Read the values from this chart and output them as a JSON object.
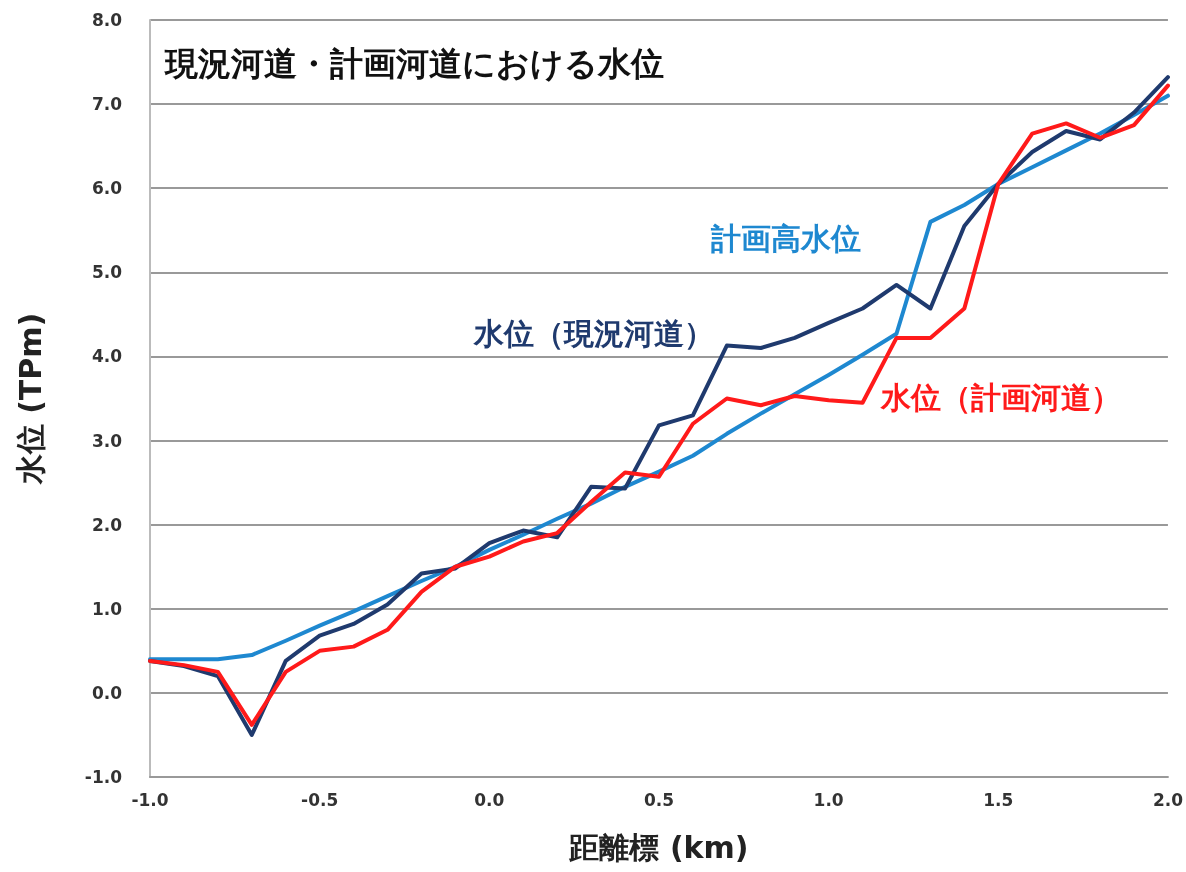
{
  "chart_data": {
    "type": "line",
    "title": "現況河道・計画河道における水位",
    "xlabel": "距離標 (km)",
    "ylabel": "水位 (TPm)",
    "x": [
      -1.0,
      -0.9,
      -0.8,
      -0.7,
      -0.6,
      -0.5,
      -0.4,
      -0.3,
      -0.2,
      -0.1,
      0.0,
      0.1,
      0.2,
      0.3,
      0.4,
      0.5,
      0.6,
      0.7,
      0.8,
      0.9,
      1.0,
      1.1,
      1.2,
      1.3,
      1.4,
      1.5,
      1.6,
      1.7,
      1.8,
      1.9,
      2.0
    ],
    "series": [
      {
        "name": "計画高水位",
        "color": "#1e88d0",
        "values": [
          0.4,
          0.4,
          0.4,
          0.45,
          0.62,
          0.8,
          0.97,
          1.15,
          1.33,
          1.5,
          1.7,
          1.88,
          2.07,
          2.25,
          2.45,
          2.63,
          2.82,
          3.08,
          3.32,
          3.55,
          3.78,
          4.02,
          4.27,
          5.6,
          5.8,
          6.05,
          6.25,
          6.45,
          6.65,
          6.87,
          7.1
        ]
      },
      {
        "name": "水位（現況河道）",
        "color": "#1f3a6e",
        "values": [
          0.38,
          0.32,
          0.2,
          -0.5,
          0.38,
          0.68,
          0.82,
          1.05,
          1.42,
          1.48,
          1.78,
          1.93,
          1.85,
          2.45,
          2.43,
          3.18,
          3.3,
          4.13,
          4.1,
          4.22,
          4.4,
          4.57,
          4.85,
          4.57,
          5.55,
          6.05,
          6.43,
          6.68,
          6.58,
          6.9,
          7.32
        ]
      },
      {
        "name": "水位（計画河道）",
        "color": "#ff1a1a",
        "values": [
          0.38,
          0.33,
          0.25,
          -0.38,
          0.25,
          0.5,
          0.55,
          0.75,
          1.2,
          1.5,
          1.62,
          1.8,
          1.9,
          2.27,
          2.62,
          2.57,
          3.2,
          3.5,
          3.42,
          3.53,
          3.48,
          3.45,
          4.22,
          4.22,
          4.57,
          6.05,
          6.65,
          6.77,
          6.6,
          6.75,
          7.22
        ]
      }
    ],
    "xlim": [
      -1.0,
      2.0
    ],
    "xticks": [
      {
        "value": -1,
        "label": "-1.0"
      },
      {
        "value": -0.5,
        "label": "-0.5"
      },
      {
        "value": 0,
        "label": "0.0"
      },
      {
        "value": 0.5,
        "label": "0.5"
      },
      {
        "value": 1,
        "label": "1.0"
      },
      {
        "value": 1.5,
        "label": "1.5"
      },
      {
        "value": 2,
        "label": "2.0"
      }
    ],
    "ylim": [
      -1.0,
      8.0
    ],
    "yticks": [
      {
        "value": -1,
        "label": "-1.0"
      },
      {
        "value": 0,
        "label": "0.0"
      },
      {
        "value": 1,
        "label": "1.0"
      },
      {
        "value": 2,
        "label": "2.0"
      },
      {
        "value": 3,
        "label": "3.0"
      },
      {
        "value": 4,
        "label": "4.0"
      },
      {
        "value": 5,
        "label": "5.0"
      },
      {
        "value": 6,
        "label": "6.0"
      },
      {
        "value": 7,
        "label": "7.0"
      },
      {
        "value": 8,
        "label": "8.0"
      }
    ],
    "grid": "y",
    "legend": false,
    "marker": "none",
    "line_style": "solid"
  }
}
